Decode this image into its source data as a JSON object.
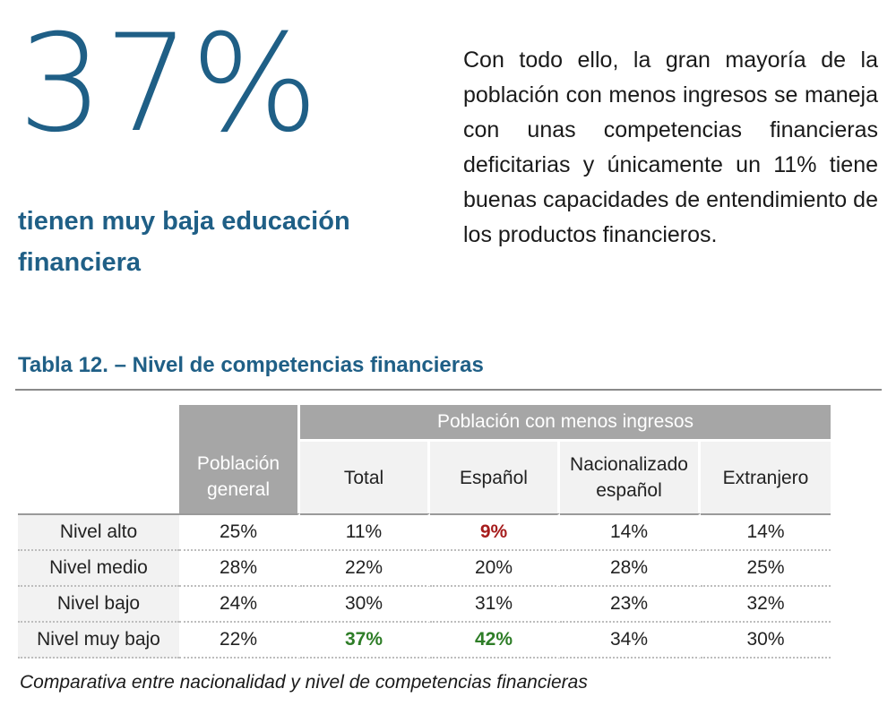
{
  "stat": {
    "value": "37%",
    "caption": "tienen muy baja educación financiera"
  },
  "paragraph": "Con todo ello, la gran mayoría de la población con menos ingresos se maneja con unas competencias financieras deficitarias y únicamente un 11% tiene buenas capacidades de entendimiento de los productos financieros.",
  "table": {
    "title": "Tabla 12. – Nivel de competencias financieras",
    "group_header": "Población con menos ingresos",
    "general_header": "Población general",
    "sub_headers": [
      "Total",
      "Español",
      "Nacionalizado español",
      "Extranjero"
    ],
    "rows": [
      {
        "label": "Nivel alto",
        "general": "25%",
        "total": "11%",
        "espanol": "9%",
        "nacionalizado": "14%",
        "extranjero": "14%"
      },
      {
        "label": "Nivel medio",
        "general": "28%",
        "total": "22%",
        "espanol": "20%",
        "nacionalizado": "28%",
        "extranjero": "25%"
      },
      {
        "label": "Nivel bajo",
        "general": "24%",
        "total": "30%",
        "espanol": "31%",
        "nacionalizado": "23%",
        "extranjero": "32%"
      },
      {
        "label": "Nivel muy bajo",
        "general": "22%",
        "total": "37%",
        "espanol": "42%",
        "nacionalizado": "34%",
        "extranjero": "30%"
      }
    ],
    "highlight_colors": {
      "red": "#a61c1c",
      "green": "#2e7d27"
    },
    "caption": "Comparativa entre nacionalidad y nivel de competencias financieras"
  },
  "colors": {
    "accent": "#1f5f86",
    "header_gray": "#a6a6a6",
    "cell_gray": "#f2f2f2"
  }
}
